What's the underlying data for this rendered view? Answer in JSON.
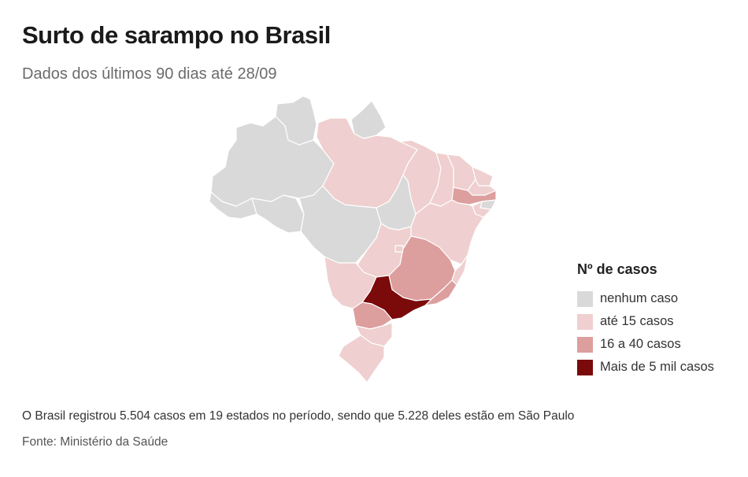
{
  "header": {
    "title": "Surto de sarampo no Brasil",
    "subtitle": "Dados dos últimos 90 dias até 28/09"
  },
  "legend": {
    "title": "Nº de casos",
    "items": [
      {
        "label": "nenhum caso",
        "color": "#d9d9d9"
      },
      {
        "label": "até 15 casos",
        "color": "#efcfcf"
      },
      {
        "label": "16 a 40 casos",
        "color": "#dd9e9e"
      },
      {
        "label": "Mais de 5 mil casos",
        "color": "#7b0a0a"
      }
    ]
  },
  "map_data": {
    "states": [
      {
        "id": "AM",
        "category": 0
      },
      {
        "id": "RR",
        "category": 0
      },
      {
        "id": "AP",
        "category": 0
      },
      {
        "id": "AC",
        "category": 0
      },
      {
        "id": "RO",
        "category": 0
      },
      {
        "id": "MT",
        "category": 0
      },
      {
        "id": "TO",
        "category": 0
      },
      {
        "id": "AL",
        "category": 0
      },
      {
        "id": "PA",
        "category": 1
      },
      {
        "id": "MA",
        "category": 1
      },
      {
        "id": "PI",
        "category": 1
      },
      {
        "id": "CE",
        "category": 1
      },
      {
        "id": "RN",
        "category": 1
      },
      {
        "id": "SE",
        "category": 1
      },
      {
        "id": "BA",
        "category": 1
      },
      {
        "id": "GO",
        "category": 1
      },
      {
        "id": "DF",
        "category": 1
      },
      {
        "id": "MS",
        "category": 1
      },
      {
        "id": "ES",
        "category": 1
      },
      {
        "id": "SC",
        "category": 1
      },
      {
        "id": "RS",
        "category": 1
      },
      {
        "id": "PB",
        "category": 1
      },
      {
        "id": "PE",
        "category": 2
      },
      {
        "id": "MG",
        "category": 2
      },
      {
        "id": "RJ",
        "category": 2
      },
      {
        "id": "PR",
        "category": 2
      },
      {
        "id": "SP",
        "category": 3
      }
    ]
  },
  "footer": {
    "note": "O Brasil registrou 5.504 casos em 19 estados no período, sendo que 5.228 deles estão em São Paulo",
    "source": "Fonte: Ministério da Saúde"
  }
}
